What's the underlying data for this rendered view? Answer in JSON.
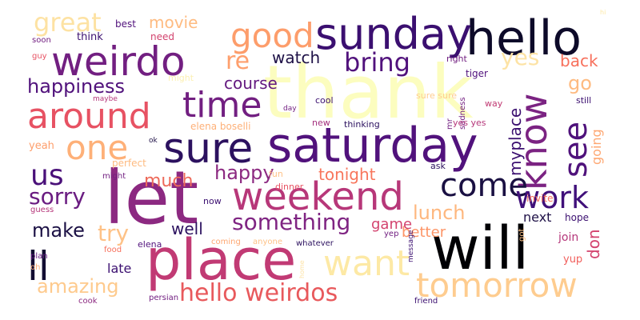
{
  "words": [
    {
      "text": "thank",
      "color": "#fcfdbf",
      "weight": 100
    },
    {
      "text": "let",
      "color": "#8c2981",
      "weight": 92
    },
    {
      "text": "will",
      "color": "#000004",
      "weight": 88
    },
    {
      "text": "place",
      "color": "#c13a74",
      "weight": 86
    },
    {
      "text": "saturday",
      "color": "#51127c",
      "weight": 84
    },
    {
      "text": "hello",
      "color": "#0d0a29",
      "weight": 82
    },
    {
      "text": "sunday",
      "color": "#3b0f70",
      "weight": 80
    },
    {
      "text": "sure",
      "color": "#2c115f",
      "weight": 76
    },
    {
      "text": "weirdo",
      "color": "#721f81",
      "weight": 74
    },
    {
      "text": "weekend",
      "color": "#b73779",
      "weight": 72
    },
    {
      "text": "around",
      "color": "#e75263",
      "weight": 66
    },
    {
      "text": "time",
      "color": "#721f81",
      "weight": 62
    },
    {
      "text": "know",
      "color": "#7b2382",
      "weight": 64
    },
    {
      "text": "want",
      "color": "#fde9a5",
      "weight": 60
    },
    {
      "text": "good",
      "color": "#fd9d6b",
      "weight": 58
    },
    {
      "text": "tomorrow",
      "color": "#fecc8f",
      "weight": 58
    },
    {
      "text": "come",
      "color": "#1a1042",
      "weight": 56
    },
    {
      "text": "ll",
      "color": "#120d32",
      "weight": 56
    },
    {
      "text": "one",
      "color": "#feb078",
      "weight": 54
    },
    {
      "text": "work",
      "color": "#40107a",
      "weight": 50
    },
    {
      "text": "see",
      "color": "#4f127b",
      "weight": 50
    },
    {
      "text": "us",
      "color": "#4a1079",
      "weight": 46
    },
    {
      "text": "bring",
      "color": "#51127c",
      "weight": 44
    },
    {
      "text": "great",
      "color": "#fde2a3",
      "weight": 44
    },
    {
      "text": "hello weirdos",
      "color": "#e8595c",
      "weight": 42
    },
    {
      "text": "something",
      "color": "#7f2482",
      "weight": 38
    },
    {
      "text": "sorry",
      "color": "#6a1c81",
      "weight": 38
    },
    {
      "text": "amazing",
      "color": "#feca8d",
      "weight": 36
    },
    {
      "text": "happiness",
      "color": "#51127c",
      "weight": 34
    },
    {
      "text": "re",
      "color": "#fe9f6d",
      "weight": 36
    },
    {
      "text": "yes",
      "color": "#fde3a5",
      "weight": 34
    },
    {
      "text": "try",
      "color": "#fec287",
      "weight": 34
    },
    {
      "text": "happy",
      "color": "#8c2981",
      "weight": 30
    },
    {
      "text": "lunch",
      "color": "#feb77e",
      "weight": 30
    },
    {
      "text": "make",
      "color": "#1b1044",
      "weight": 30
    },
    {
      "text": "much",
      "color": "#ed6a5a",
      "weight": 28
    },
    {
      "text": "course",
      "color": "#641a80",
      "weight": 26
    },
    {
      "text": "tonight",
      "color": "#f8765c",
      "weight": 26
    },
    {
      "text": "watch",
      "color": "#1e1147",
      "weight": 26
    },
    {
      "text": "movie",
      "color": "#febb81",
      "weight": 26
    },
    {
      "text": "back",
      "color": "#f7705c",
      "weight": 26
    },
    {
      "text": "go",
      "color": "#febb81",
      "weight": 28
    },
    {
      "text": "myplace",
      "color": "#3b0f70",
      "weight": 24
    },
    {
      "text": "going",
      "color": "#fea772",
      "weight": 20
    },
    {
      "text": "well",
      "color": "#2c115f",
      "weight": 24
    },
    {
      "text": "better",
      "color": "#fd9567",
      "weight": 22
    },
    {
      "text": "game",
      "color": "#d3436e",
      "weight": 22
    },
    {
      "text": "next",
      "color": "#1f1147",
      "weight": 20
    },
    {
      "text": "don",
      "color": "#d3436e",
      "weight": 26
    },
    {
      "text": "late",
      "color": "#3b0f70",
      "weight": 20
    },
    {
      "text": "join",
      "color": "#b5367a",
      "weight": 18
    },
    {
      "text": "yup",
      "color": "#f1605d",
      "weight": 16
    },
    {
      "text": "yeah",
      "color": "#fe9f6d",
      "weight": 16
    },
    {
      "text": "perfect",
      "color": "#febb81",
      "weight": 14
    },
    {
      "text": "invite",
      "color": "#f7705c",
      "weight": 14
    },
    {
      "text": "hope",
      "color": "#3b0f70",
      "weight": 14
    },
    {
      "text": "might",
      "color": "#fcf0b3",
      "weight": 12
    },
    {
      "text": "think",
      "color": "#3b0f70",
      "weight": 16
    },
    {
      "text": "need",
      "color": "#d3436e",
      "weight": 14
    },
    {
      "text": "best",
      "color": "#51127c",
      "weight": 14
    },
    {
      "text": "soon",
      "color": "#721f81",
      "weight": 12
    },
    {
      "text": "guy",
      "color": "#e75263",
      "weight": 12
    },
    {
      "text": "maybe",
      "color": "#b5367a",
      "weight": 10
    },
    {
      "text": "ok",
      "color": "#1f1147",
      "weight": 10
    },
    {
      "text": "day",
      "color": "#721f81",
      "weight": 10
    },
    {
      "text": "elena boselli",
      "color": "#feb078",
      "weight": 14
    },
    {
      "text": "sure sure",
      "color": "#fecc8f",
      "weight": 12
    },
    {
      "text": "cool",
      "color": "#3b0f70",
      "weight": 12
    },
    {
      "text": "right",
      "color": "#721f81",
      "weight": 12
    },
    {
      "text": "tiger",
      "color": "#51127c",
      "weight": 14
    },
    {
      "text": "sadness",
      "color": "#721f81",
      "weight": 12
    },
    {
      "text": "way",
      "color": "#c13a74",
      "weight": 12
    },
    {
      "text": "still",
      "color": "#3b0f70",
      "weight": 12
    },
    {
      "text": "mr",
      "color": "#721f81",
      "weight": 12
    },
    {
      "text": "yes yes",
      "color": "#b5367a",
      "weight": 12
    },
    {
      "text": "new",
      "color": "#a3307e",
      "weight": 12
    },
    {
      "text": "thinking",
      "color": "#2c115f",
      "weight": 12
    },
    {
      "text": "fun",
      "color": "#fec287",
      "weight": 12
    },
    {
      "text": "ask",
      "color": "#2c115f",
      "weight": 12
    },
    {
      "text": "might",
      "color": "#721f81",
      "weight": 10
    },
    {
      "text": "guess",
      "color": "#b5367a",
      "weight": 10
    },
    {
      "text": "dinner",
      "color": "#e75263",
      "weight": 12
    },
    {
      "text": "now",
      "color": "#3b0f70",
      "weight": 12
    },
    {
      "text": "elena",
      "color": "#51127c",
      "weight": 12
    },
    {
      "text": "coming",
      "color": "#fea772",
      "weight": 10
    },
    {
      "text": "anyone",
      "color": "#fec287",
      "weight": 10
    },
    {
      "text": "whatever",
      "color": "#2c115f",
      "weight": 10
    },
    {
      "text": "yep",
      "color": "#721f81",
      "weight": 10
    },
    {
      "text": "message",
      "color": "#3b0f70",
      "weight": 10
    },
    {
      "text": "got",
      "color": "#fec287",
      "weight": 10
    },
    {
      "text": "plan",
      "color": "#641a80",
      "weight": 10
    },
    {
      "text": "food",
      "color": "#f7705c",
      "weight": 10
    },
    {
      "text": "oh",
      "color": "#feb078",
      "weight": 10
    },
    {
      "text": "home",
      "color": "#fde3a5",
      "weight": 8
    },
    {
      "text": "cook",
      "color": "#8c2981",
      "weight": 10
    },
    {
      "text": "persian",
      "color": "#721f81",
      "weight": 10
    },
    {
      "text": "friend",
      "color": "#3b0f70",
      "weight": 10
    },
    {
      "text": "hi",
      "color": "#fde9a5",
      "weight": 8
    }
  ]
}
